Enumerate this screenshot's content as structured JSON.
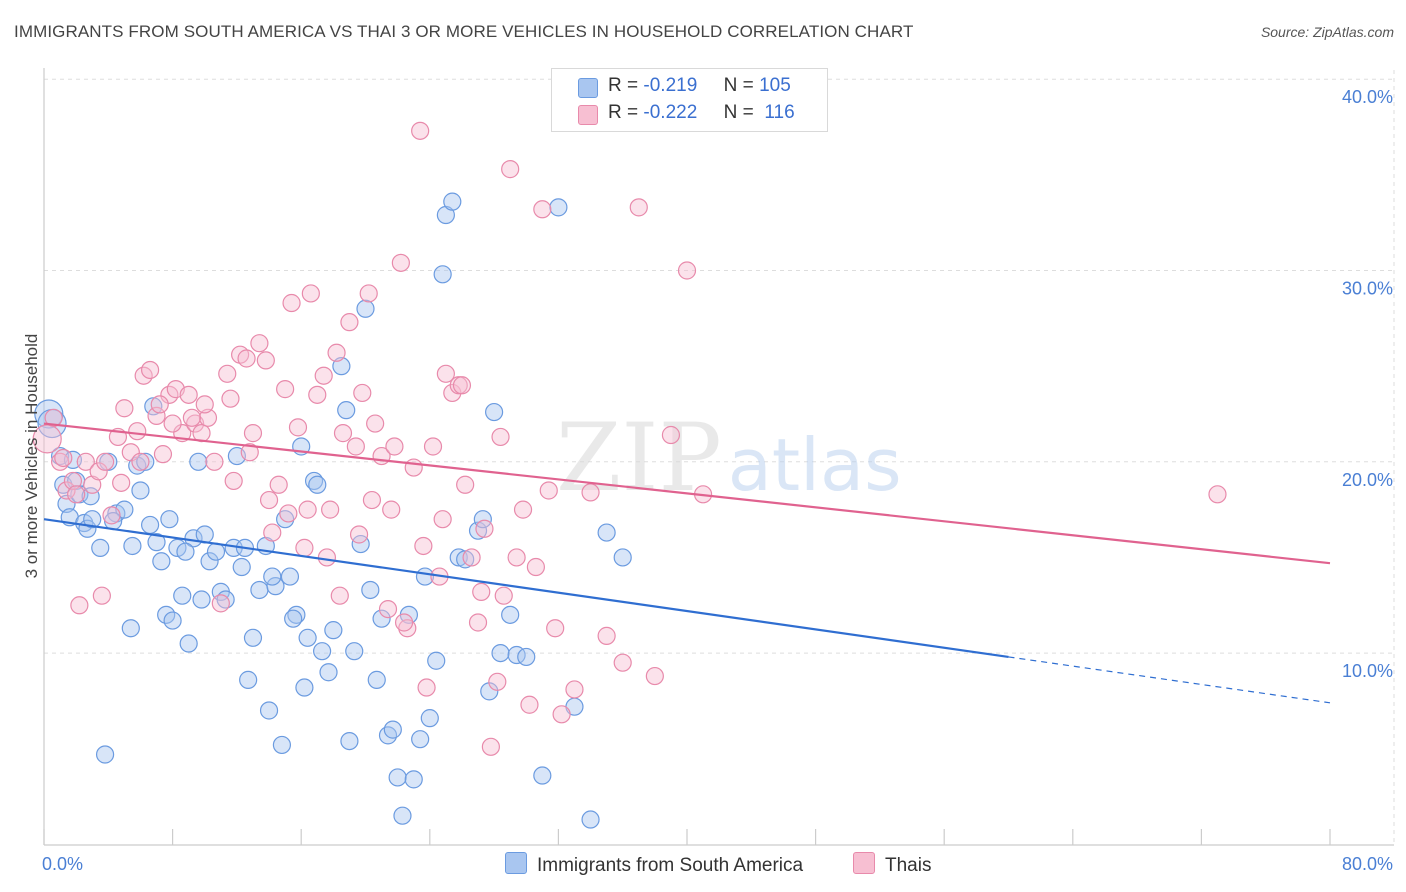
{
  "title": "IMMIGRANTS FROM SOUTH AMERICA VS THAI 3 OR MORE VEHICLES IN HOUSEHOLD CORRELATION CHART",
  "source": "Source: ZipAtlas.com",
  "watermark": "ZIPatlas",
  "legend": {
    "rows": [
      {
        "r_label": "R =",
        "r_value": "-0.219",
        "n_label": "N =",
        "n_value": "105",
        "color": "#a9c6f0",
        "border": "#6b9be0"
      },
      {
        "r_label": "R =",
        "r_value": "-0.222",
        "n_label": "N =",
        "n_value": "116",
        "color": "#f7bfd2",
        "border": "#e88aab"
      }
    ]
  },
  "bottom_legend": [
    {
      "label": "Immigrants from South America",
      "color": "#a9c6f0",
      "border": "#6b9be0"
    },
    {
      "label": "Thais",
      "color": "#f7bfd2",
      "border": "#e88aab"
    }
  ],
  "chart_data": {
    "type": "scatter",
    "xlabel": "",
    "ylabel": "3 or more Vehicles in Household",
    "xlim": [
      0,
      80
    ],
    "ylim": [
      0,
      40
    ],
    "x_tick_labels": [
      "0.0%",
      "80.0%"
    ],
    "y_ticks": [
      10,
      20,
      30,
      40
    ],
    "y_tick_labels": [
      "10.0%",
      "20.0%",
      "30.0%",
      "40.0%"
    ],
    "grid": true,
    "series": [
      {
        "name": "Immigrants from South America",
        "color": "#6b9be0",
        "fill": "#a9c6f0",
        "trend": {
          "x0": 0,
          "y0": 17.0,
          "x1": 60,
          "y1": 9.8,
          "dash_to_x": 80,
          "dash_to_y": 7.4,
          "color": "#2f6ed1"
        },
        "points": [
          [
            0.3,
            22.5
          ],
          [
            0.5,
            22.0
          ],
          [
            1.0,
            20.3
          ],
          [
            1.2,
            18.8
          ],
          [
            1.4,
            17.8
          ],
          [
            1.6,
            17.1
          ],
          [
            2.0,
            19.0
          ],
          [
            2.2,
            18.3
          ],
          [
            2.5,
            16.8
          ],
          [
            2.7,
            16.5
          ],
          [
            3.0,
            17.0
          ],
          [
            3.5,
            15.5
          ],
          [
            4.0,
            20.0
          ],
          [
            4.5,
            17.3
          ],
          [
            5.0,
            17.5
          ],
          [
            5.5,
            15.6
          ],
          [
            5.8,
            19.8
          ],
          [
            6.0,
            18.5
          ],
          [
            6.3,
            20.0
          ],
          [
            6.6,
            16.7
          ],
          [
            7.0,
            15.8
          ],
          [
            7.3,
            14.8
          ],
          [
            7.6,
            12.0
          ],
          [
            8.0,
            11.7
          ],
          [
            8.3,
            15.5
          ],
          [
            8.6,
            13.0
          ],
          [
            9.0,
            10.5
          ],
          [
            9.3,
            16.0
          ],
          [
            9.6,
            20.0
          ],
          [
            10.0,
            16.2
          ],
          [
            10.3,
            14.8
          ],
          [
            10.7,
            15.3
          ],
          [
            11.0,
            13.2
          ],
          [
            11.3,
            12.8
          ],
          [
            11.8,
            15.5
          ],
          [
            12.0,
            20.3
          ],
          [
            12.3,
            14.5
          ],
          [
            12.7,
            8.6
          ],
          [
            13.0,
            10.8
          ],
          [
            13.4,
            13.3
          ],
          [
            13.8,
            15.6
          ],
          [
            14.0,
            7.0
          ],
          [
            14.4,
            13.5
          ],
          [
            14.8,
            5.2
          ],
          [
            15.0,
            17.0
          ],
          [
            15.3,
            14.0
          ],
          [
            15.7,
            12.0
          ],
          [
            16.0,
            20.8
          ],
          [
            16.4,
            10.8
          ],
          [
            16.8,
            19.0
          ],
          [
            17.0,
            18.8
          ],
          [
            17.3,
            10.1
          ],
          [
            17.7,
            9.0
          ],
          [
            18.0,
            11.2
          ],
          [
            18.5,
            25.0
          ],
          [
            18.8,
            22.7
          ],
          [
            19.0,
            5.4
          ],
          [
            19.3,
            10.1
          ],
          [
            19.7,
            15.7
          ],
          [
            20.0,
            28.0
          ],
          [
            20.3,
            13.3
          ],
          [
            20.7,
            8.6
          ],
          [
            21.0,
            11.8
          ],
          [
            21.4,
            5.7
          ],
          [
            21.7,
            6.0
          ],
          [
            22.0,
            3.5
          ],
          [
            22.3,
            1.5
          ],
          [
            22.7,
            12.0
          ],
          [
            23.0,
            3.4
          ],
          [
            23.4,
            5.5
          ],
          [
            23.7,
            14.0
          ],
          [
            24.0,
            6.6
          ],
          [
            24.4,
            9.6
          ],
          [
            24.8,
            29.8
          ],
          [
            25.0,
            32.9
          ],
          [
            25.4,
            33.6
          ],
          [
            25.8,
            15.0
          ],
          [
            26.2,
            14.9
          ],
          [
            27.0,
            16.4
          ],
          [
            27.3,
            17.0
          ],
          [
            27.7,
            8.0
          ],
          [
            28.0,
            22.6
          ],
          [
            28.4,
            10.0
          ],
          [
            29.0,
            12.0
          ],
          [
            29.4,
            9.9
          ],
          [
            30.0,
            9.8
          ],
          [
            31.0,
            3.6
          ],
          [
            32.0,
            33.3
          ],
          [
            33.0,
            7.2
          ],
          [
            34.0,
            1.3
          ],
          [
            35.0,
            16.3
          ],
          [
            36.0,
            15.0
          ],
          [
            3.8,
            4.7
          ],
          [
            5.4,
            11.3
          ],
          [
            6.8,
            22.9
          ],
          [
            9.8,
            12.8
          ],
          [
            12.5,
            15.5
          ],
          [
            14.2,
            14.0
          ],
          [
            15.5,
            11.8
          ],
          [
            16.2,
            8.2
          ],
          [
            8.8,
            15.3
          ],
          [
            7.8,
            17.0
          ],
          [
            4.3,
            16.9
          ],
          [
            2.9,
            18.2
          ],
          [
            1.8,
            20.1
          ]
        ]
      },
      {
        "name": "Thais",
        "color": "#e88aab",
        "fill": "#f7bfd2",
        "trend": {
          "x0": 0,
          "y0": 22.0,
          "x1": 80,
          "y1": 14.7,
          "color": "#e0628f"
        },
        "points": [
          [
            0.2,
            21.2
          ],
          [
            0.6,
            22.3
          ],
          [
            1.0,
            20.0
          ],
          [
            1.4,
            18.5
          ],
          [
            1.8,
            19.0
          ],
          [
            2.2,
            12.5
          ],
          [
            2.6,
            20.0
          ],
          [
            3.0,
            18.8
          ],
          [
            3.4,
            19.5
          ],
          [
            3.8,
            20.0
          ],
          [
            4.2,
            17.2
          ],
          [
            4.6,
            21.3
          ],
          [
            5.0,
            22.8
          ],
          [
            5.4,
            20.5
          ],
          [
            5.8,
            21.6
          ],
          [
            6.2,
            24.5
          ],
          [
            6.6,
            24.8
          ],
          [
            7.0,
            22.4
          ],
          [
            7.4,
            20.4
          ],
          [
            7.8,
            23.5
          ],
          [
            8.2,
            23.8
          ],
          [
            8.6,
            21.5
          ],
          [
            9.0,
            23.5
          ],
          [
            9.4,
            22.0
          ],
          [
            9.8,
            21.5
          ],
          [
            10.2,
            22.3
          ],
          [
            10.6,
            20.0
          ],
          [
            11.0,
            12.6
          ],
          [
            11.4,
            24.6
          ],
          [
            11.8,
            19.0
          ],
          [
            12.2,
            25.6
          ],
          [
            12.6,
            25.4
          ],
          [
            13.0,
            21.5
          ],
          [
            13.4,
            26.2
          ],
          [
            13.8,
            25.3
          ],
          [
            14.2,
            16.3
          ],
          [
            14.6,
            18.8
          ],
          [
            15.0,
            23.8
          ],
          [
            15.4,
            28.3
          ],
          [
            15.8,
            21.8
          ],
          [
            16.2,
            15.5
          ],
          [
            16.6,
            28.8
          ],
          [
            17.0,
            23.5
          ],
          [
            17.4,
            24.5
          ],
          [
            17.8,
            17.5
          ],
          [
            18.2,
            25.7
          ],
          [
            18.6,
            21.5
          ],
          [
            19.0,
            27.3
          ],
          [
            19.4,
            20.8
          ],
          [
            19.8,
            23.6
          ],
          [
            20.2,
            28.8
          ],
          [
            20.6,
            22.0
          ],
          [
            21.0,
            20.3
          ],
          [
            21.4,
            12.3
          ],
          [
            21.8,
            20.8
          ],
          [
            22.2,
            30.4
          ],
          [
            22.6,
            11.3
          ],
          [
            23.0,
            19.7
          ],
          [
            23.4,
            37.3
          ],
          [
            23.8,
            8.2
          ],
          [
            24.2,
            20.8
          ],
          [
            24.6,
            14.0
          ],
          [
            25.0,
            24.6
          ],
          [
            25.4,
            23.6
          ],
          [
            25.8,
            24.0
          ],
          [
            26.2,
            18.8
          ],
          [
            26.6,
            15.0
          ],
          [
            27.0,
            11.6
          ],
          [
            27.4,
            16.5
          ],
          [
            27.8,
            5.1
          ],
          [
            28.2,
            8.5
          ],
          [
            28.6,
            13.0
          ],
          [
            29.0,
            35.3
          ],
          [
            29.4,
            15.0
          ],
          [
            29.8,
            17.5
          ],
          [
            30.2,
            7.3
          ],
          [
            30.6,
            14.5
          ],
          [
            31.0,
            33.2
          ],
          [
            31.4,
            18.5
          ],
          [
            31.8,
            11.3
          ],
          [
            32.2,
            6.8
          ],
          [
            33.0,
            8.1
          ],
          [
            34.0,
            18.4
          ],
          [
            35.0,
            10.9
          ],
          [
            36.0,
            9.5
          ],
          [
            37.0,
            33.3
          ],
          [
            38.0,
            8.8
          ],
          [
            39.0,
            21.4
          ],
          [
            40.0,
            30.0
          ],
          [
            41.0,
            18.3
          ],
          [
            1.2,
            20.2
          ],
          [
            2.0,
            18.3
          ],
          [
            3.6,
            13.0
          ],
          [
            4.8,
            18.9
          ],
          [
            6.0,
            20.0
          ],
          [
            7.2,
            23.0
          ],
          [
            8.0,
            22.0
          ],
          [
            9.2,
            22.3
          ],
          [
            10.0,
            23.0
          ],
          [
            11.6,
            23.3
          ],
          [
            12.8,
            20.5
          ],
          [
            14.0,
            18.0
          ],
          [
            15.2,
            17.3
          ],
          [
            16.4,
            17.5
          ],
          [
            17.6,
            15.0
          ],
          [
            18.4,
            13.0
          ],
          [
            19.6,
            16.2
          ],
          [
            20.4,
            18.0
          ],
          [
            21.6,
            17.5
          ],
          [
            22.4,
            11.6
          ],
          [
            23.6,
            15.6
          ],
          [
            24.8,
            17.0
          ],
          [
            26.0,
            24.0
          ],
          [
            27.2,
            13.2
          ],
          [
            28.4,
            21.3
          ],
          [
            73.0,
            18.3
          ]
        ]
      }
    ]
  }
}
